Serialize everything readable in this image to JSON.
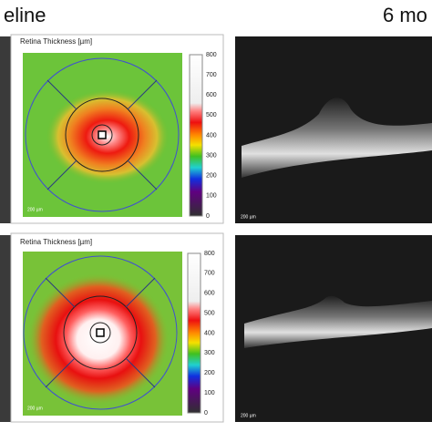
{
  "header": {
    "left_label": "eline",
    "right_label": "6 mo"
  },
  "panels": [
    {
      "map_title": "Retina Thickness [µm]",
      "colorbar_ticks": [
        "800",
        "700",
        "600",
        "500",
        "400",
        "300",
        "200",
        "100",
        "0"
      ],
      "map_scale": "200 µm",
      "oct_scale": "200 µm"
    },
    {
      "map_title": "Retina Thickness [µm]",
      "colorbar_ticks": [
        "800",
        "700",
        "600",
        "500",
        "400",
        "300",
        "200",
        "100",
        "0"
      ],
      "map_scale": "200 µm",
      "oct_scale": "200 µm"
    }
  ]
}
